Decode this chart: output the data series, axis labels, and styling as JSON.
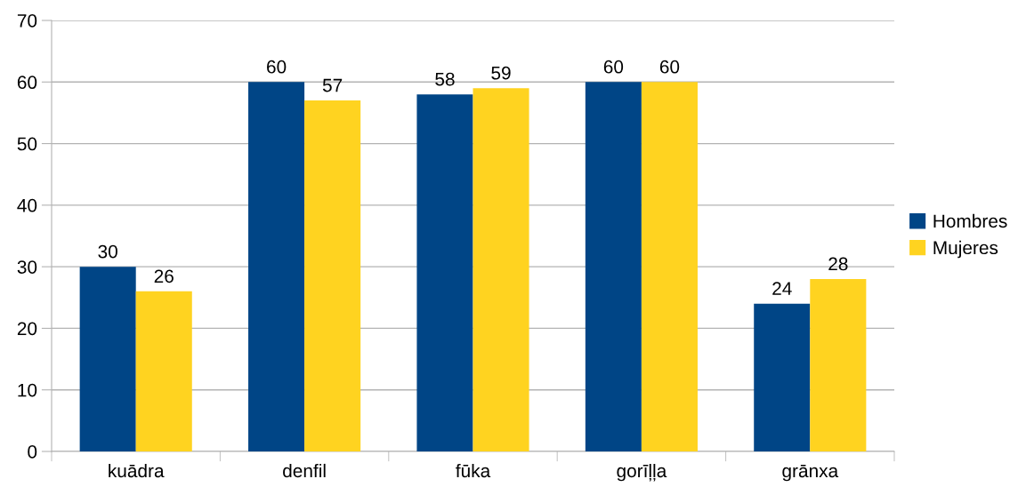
{
  "chart_data": {
    "type": "bar",
    "categories": [
      "kuādra",
      "denfil",
      "fūka",
      "gorīļļa",
      "grānxa"
    ],
    "series": [
      {
        "name": "Hombres",
        "color": "#004586",
        "values": [
          30,
          60,
          58,
          60,
          24
        ]
      },
      {
        "name": "Mujeres",
        "color": "#ffd320",
        "values": [
          26,
          57,
          59,
          60,
          28
        ]
      }
    ],
    "ylim": [
      0,
      70
    ],
    "yticks": [
      0,
      10,
      20,
      30,
      40,
      50,
      60,
      70
    ],
    "grid": "y",
    "legend": "right",
    "data_labels": true
  }
}
